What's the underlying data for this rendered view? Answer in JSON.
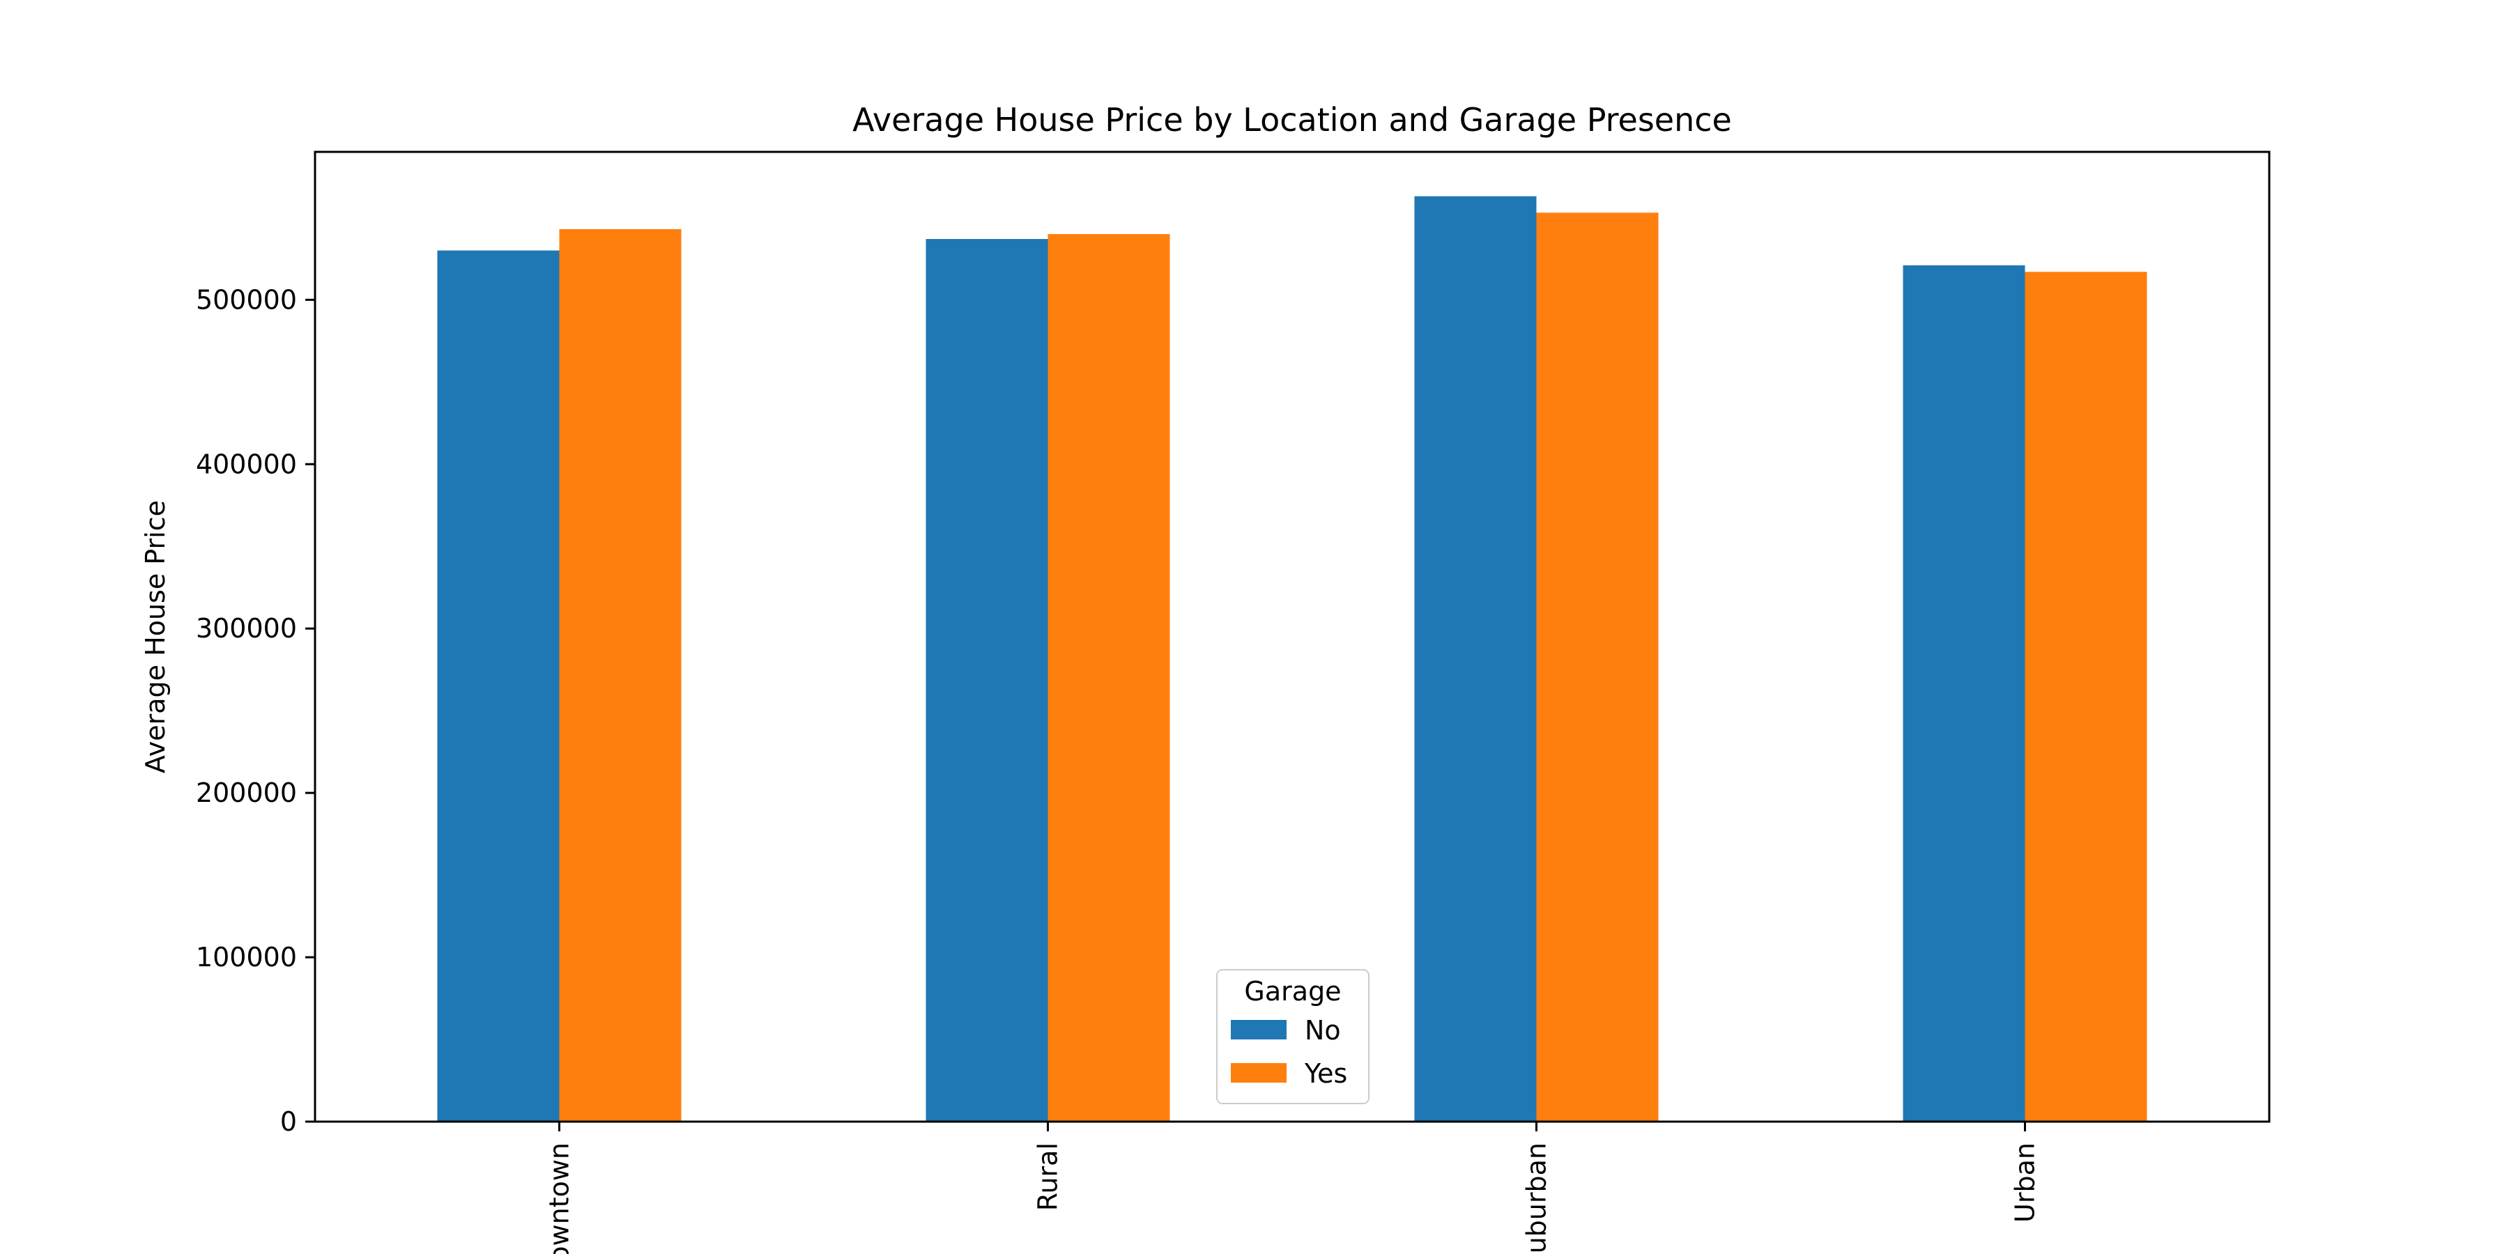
{
  "chart_data": {
    "type": "bar",
    "title": "Average House Price by Location and Garage Presence",
    "xlabel": "",
    "ylabel": "Average House Price",
    "categories": [
      "Downtown",
      "Rural",
      "Suburban",
      "Urban"
    ],
    "series": [
      {
        "name": "No",
        "color": "#1f77b4",
        "values": [
          530000,
          537000,
          563000,
          521000
        ]
      },
      {
        "name": "Yes",
        "color": "#ff7f0e",
        "values": [
          543000,
          540000,
          553000,
          517000
        ]
      }
    ],
    "ylim": [
      0,
      590000
    ],
    "yticks": [
      0,
      100000,
      200000,
      300000,
      400000,
      500000
    ],
    "ytick_labels": [
      "0",
      "100000",
      "200000",
      "300000",
      "400000",
      "500000"
    ],
    "grid": false,
    "legend": {
      "title": "Garage",
      "placement": "lower-center"
    }
  }
}
